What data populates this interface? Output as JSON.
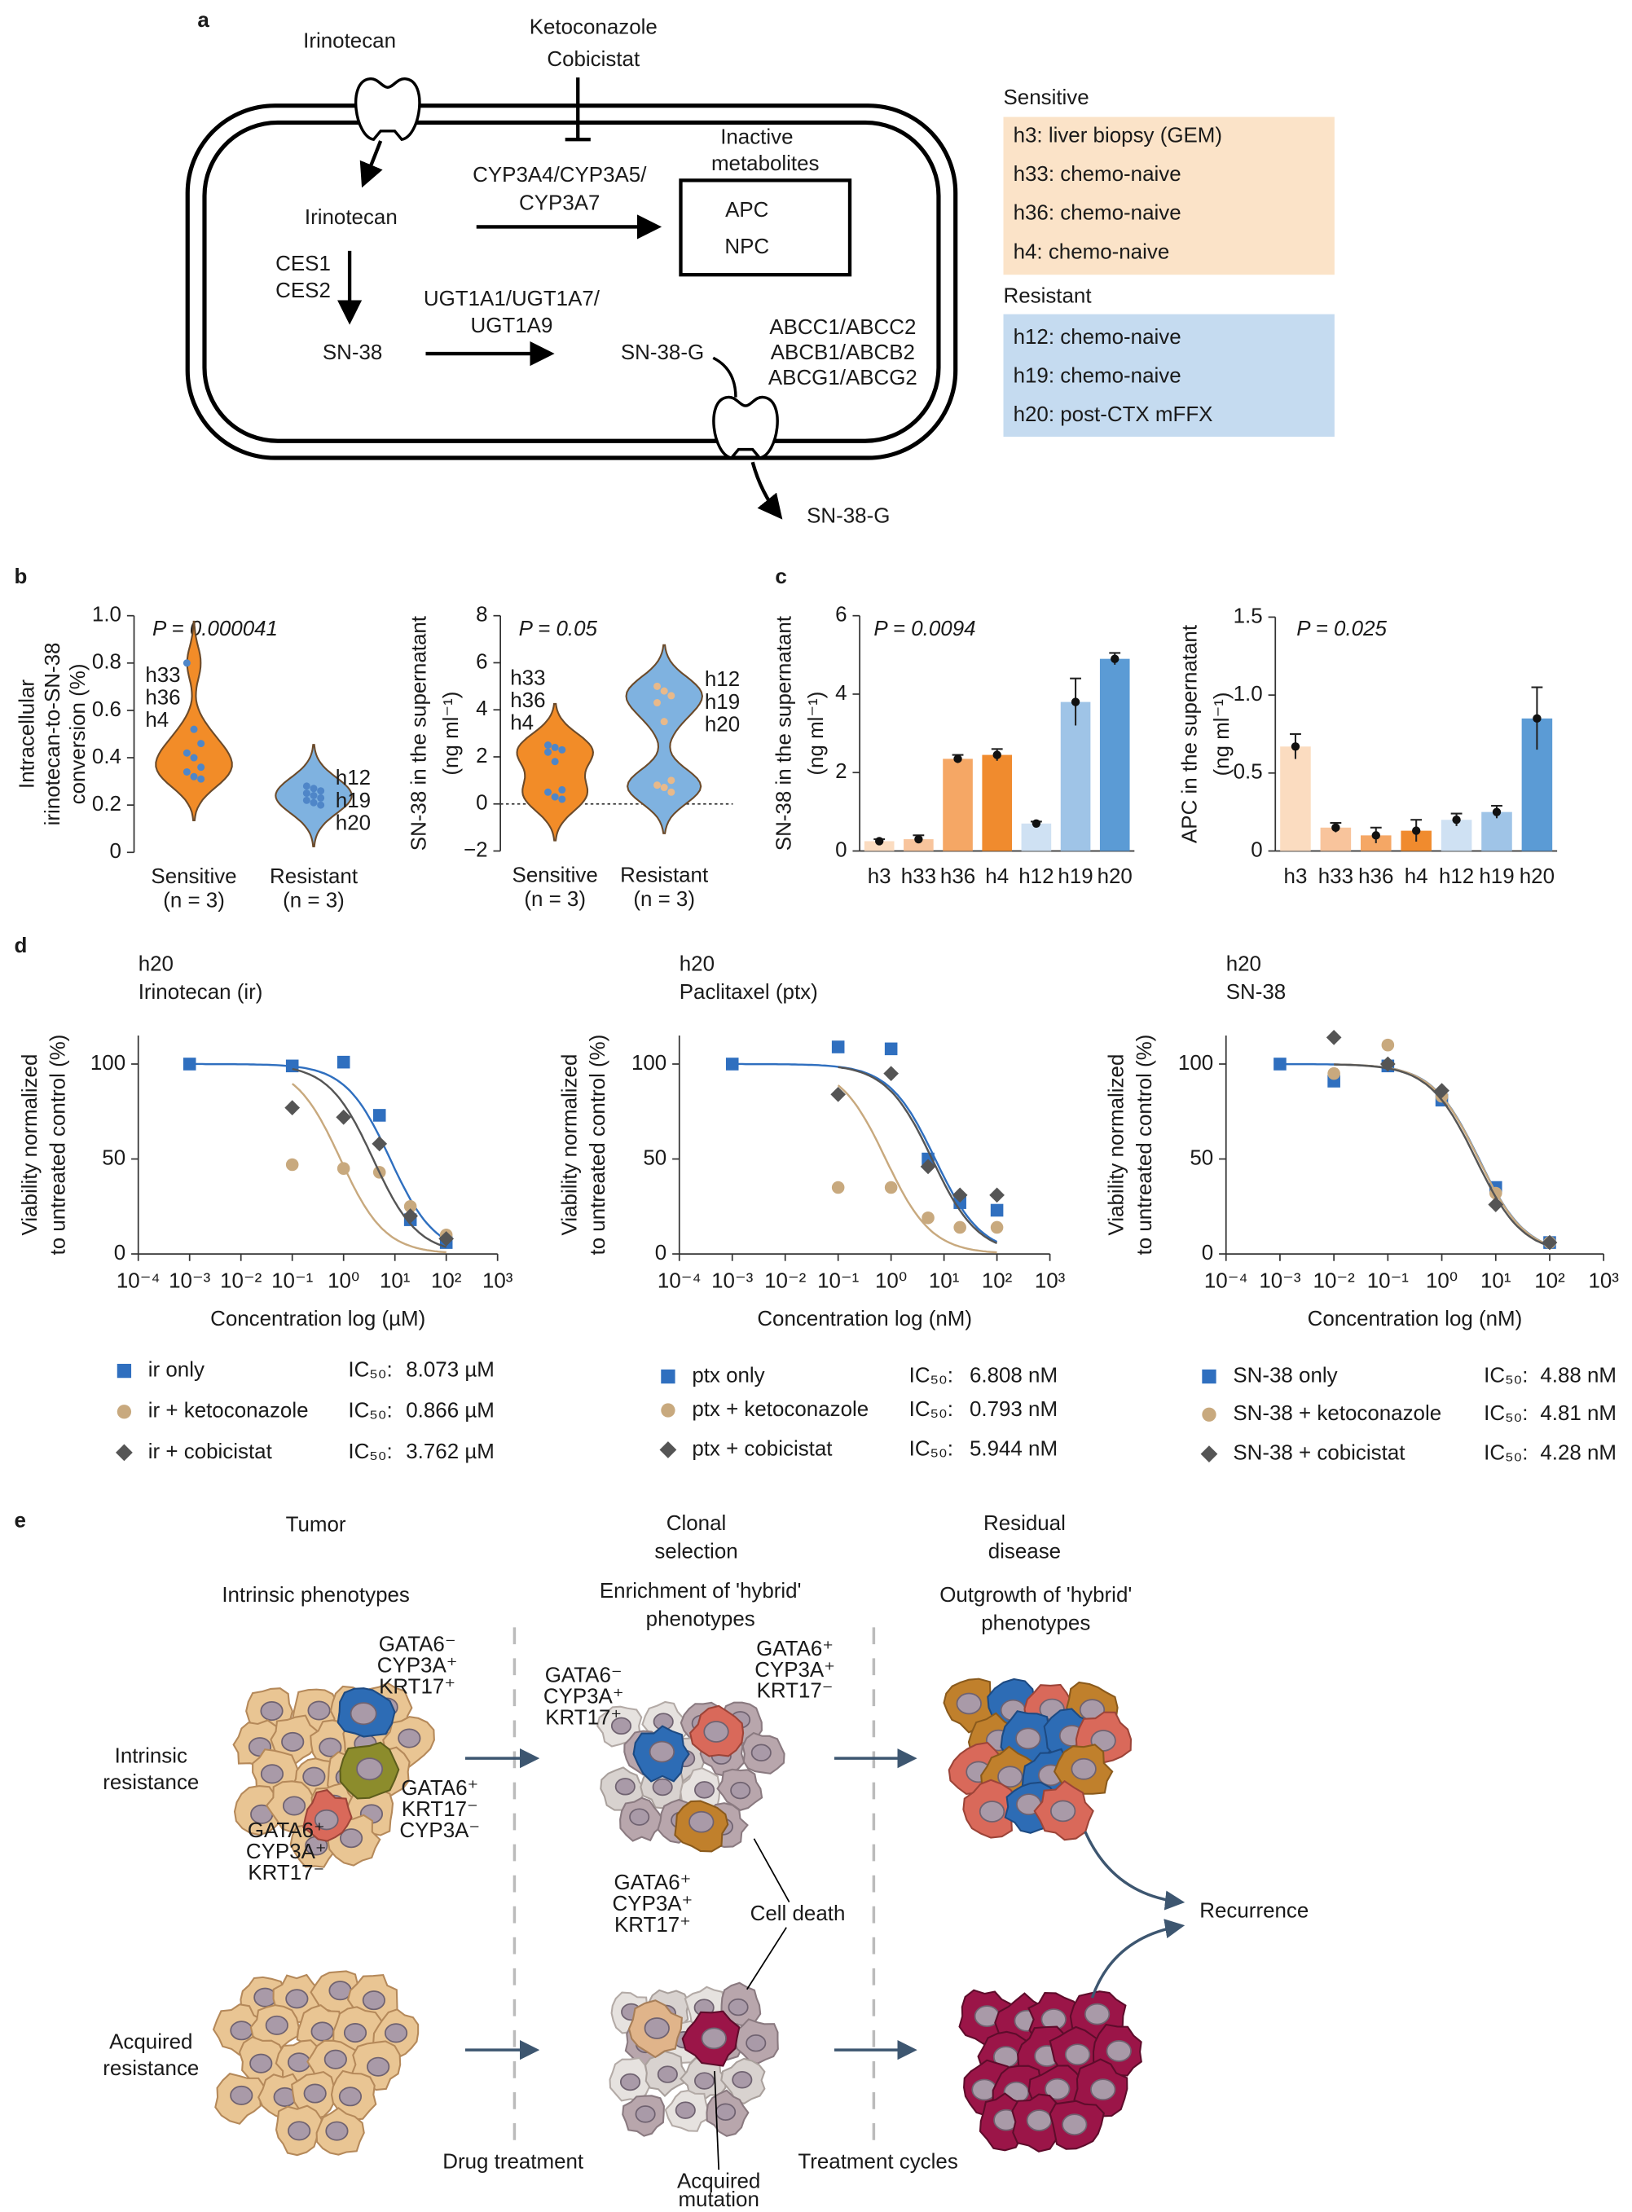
{
  "panel_labels": [
    "a",
    "b",
    "c",
    "d",
    "e"
  ],
  "diagram_a": {
    "drug_in": "Irinotecan",
    "inhibitors": [
      "Ketoconazole",
      "Cobicistat"
    ],
    "irinotecan": "Irinotecan",
    "cyp": [
      "CYP3A4/CYP3A5/",
      "CYP3A7"
    ],
    "inactive": [
      "Inactive",
      "metabolites"
    ],
    "metabolites": [
      "APC",
      "NPC"
    ],
    "ces": [
      "CES1",
      "CES2"
    ],
    "sn38": "SN-38",
    "ugt": [
      "UGT1A1/UGT1A7/",
      "UGT1A9"
    ],
    "sn38g": "SN-38-G",
    "abc": [
      "ABCC1/ABCC2",
      "ABCB1/ABCB2",
      "ABCG1/ABCG2"
    ],
    "efflux": "SN-38-G",
    "legend": [
      {
        "title": "Sensitive",
        "items": [
          "h3: liver biopsy (GEM)",
          "h33: chemo-naive",
          "h36: chemo-naive",
          "h4: chemo-naive"
        ]
      },
      {
        "title": "Resistant",
        "items": [
          "h12: chemo-naive",
          "h19: chemo-naive",
          "h20: post-CTX mFFX"
        ]
      }
    ]
  },
  "chart_data": [
    {
      "type": "violin",
      "p_label": "P = 0.000041",
      "ylabel": [
        "Intracellular",
        "irinotecan-to-SN-38",
        "conversion (%)"
      ],
      "categories": [
        "Sensitive",
        "Resistant"
      ],
      "category_sublabels": [
        "(n = 3)",
        "(n = 3)"
      ],
      "values": [
        [
          0.8,
          0.52,
          0.46,
          0.42,
          0.4,
          0.36,
          0.34,
          0.32,
          0.31
        ],
        [
          0.28,
          0.27,
          0.26,
          0.25,
          0.24,
          0.23,
          0.22,
          0.21,
          0.2
        ]
      ],
      "annotations": [
        [
          "h33",
          "h36",
          "h4"
        ],
        [
          "h12",
          "h19",
          "h20"
        ]
      ],
      "colors": [
        "#f28c28",
        "#7fb2e0"
      ],
      "point_colors": [
        "#4f86c8",
        "#4f86c8"
      ],
      "ylim": [
        0,
        1
      ],
      "yticks": [
        0,
        0.2,
        0.4,
        0.6,
        0.8,
        {
          "value": 1,
          "label": "1.0"
        }
      ]
    },
    {
      "type": "violin",
      "p_label": "P = 0.05",
      "zero_line": true,
      "ylabel": [
        "SN-38 in the supernatant",
        "(ng ml⁻¹)"
      ],
      "categories": [
        "Sensitive",
        "Resistant"
      ],
      "category_sublabels": [
        "(n = 3)",
        "(n = 3)"
      ],
      "values": [
        [
          2.5,
          2.4,
          2.3,
          2.2,
          1.8,
          0.6,
          0.5,
          0.3,
          0.2
        ],
        [
          5.0,
          4.8,
          4.6,
          4.3,
          3.5,
          1.0,
          0.8,
          0.7,
          0.5
        ]
      ],
      "annotations": [
        [
          "h33",
          "h36",
          "h4"
        ],
        [
          "h12",
          "h19",
          "h20"
        ]
      ],
      "colors": [
        "#f28c28",
        "#7fb2e0"
      ],
      "point_colors": [
        "#4f86c8",
        "#e8b98a"
      ],
      "ylim": [
        -2,
        8
      ],
      "yticks": [
        {
          "value": -2,
          "label": "−2"
        },
        0,
        2,
        4,
        6,
        8
      ]
    },
    {
      "type": "bar",
      "p_label": "P = 0.0094",
      "ylabel": [
        "SN-38 in the supernatant",
        "(ng ml⁻¹)"
      ],
      "categories": [
        "h3",
        "h33",
        "h36",
        "h4",
        "h12",
        "h19",
        "h20"
      ],
      "values": [
        0.25,
        0.3,
        2.35,
        2.45,
        0.7,
        3.8,
        4.9
      ],
      "errors": [
        0.05,
        0.1,
        0.1,
        0.15,
        0.05,
        0.6,
        0.15
      ],
      "colors": [
        "#fbdcc0",
        "#f8c49c",
        "#f5a765",
        "#f08b2e",
        "#cfe1f3",
        "#9fc4e7",
        "#5b9bd5"
      ],
      "ylim": [
        0,
        6
      ],
      "yticks": [
        0,
        2,
        4,
        6
      ]
    },
    {
      "type": "bar",
      "p_label": "P = 0.025",
      "ylabel": [
        "APC in the supernatant",
        "(ng ml⁻¹)"
      ],
      "categories": [
        "h3",
        "h33",
        "h36",
        "h4",
        "h12",
        "h19",
        "h20"
      ],
      "values": [
        0.67,
        0.15,
        0.1,
        0.13,
        0.2,
        0.25,
        0.85
      ],
      "errors": [
        0.08,
        0.03,
        0.05,
        0.07,
        0.04,
        0.04,
        0.2
      ],
      "colors": [
        "#fbdcc0",
        "#f8c49c",
        "#f5a765",
        "#f08b2e",
        "#cfe1f3",
        "#9fc4e7",
        "#5b9bd5"
      ],
      "ylim": [
        0,
        1.5
      ],
      "yticks": [
        0,
        0.5,
        {
          "value": 1,
          "label": "1.0"
        },
        1.5
      ]
    },
    {
      "type": "dose_response",
      "title": [
        "h20",
        "Irinotecan (ir)"
      ],
      "xlabel": "Concentration log (µM)",
      "ylabel": [
        "Viability normalized",
        "to untreated control (%)"
      ],
      "xscale": "log",
      "xlim": [
        0.0001,
        1000
      ],
      "xticks": [
        {
          "value": 0.0001,
          "label": "10⁻⁴"
        },
        {
          "value": 0.001,
          "label": "10⁻³"
        },
        {
          "value": 0.01,
          "label": "10⁻²"
        },
        {
          "value": 0.1,
          "label": "10⁻¹"
        },
        {
          "value": 1,
          "label": "10⁰"
        },
        {
          "value": 10,
          "label": "10¹"
        },
        {
          "value": 100,
          "label": "10²"
        },
        {
          "value": 1000,
          "label": "10³"
        }
      ],
      "ylim": [
        0,
        115
      ],
      "yticks": [
        0,
        50,
        100
      ],
      "ic50_prefix": "IC₅₀:",
      "series": [
        {
          "name": "ir only",
          "color": "#2f6fbf",
          "marker": "square",
          "x": [
            0.001,
            0.1,
            1,
            5,
            20,
            100
          ],
          "values": [
            100,
            99,
            101,
            73,
            18,
            6
          ],
          "ic50": 8.073,
          "ic50_label": "8.073 µM"
        },
        {
          "name": "ir + ketoconazole",
          "color": "#c8a97e",
          "marker": "circle",
          "x": [
            0.1,
            1,
            5,
            20,
            100
          ],
          "values": [
            47,
            45,
            43,
            25,
            10
          ],
          "ic50": 0.866,
          "ic50_label": "0.866 µM"
        },
        {
          "name": "ir + cobicistat",
          "color": "#555555",
          "marker": "diamond",
          "x": [
            0.1,
            1,
            5,
            20,
            100
          ],
          "values": [
            77,
            72,
            58,
            20,
            8
          ],
          "ic50": 3.762,
          "ic50_label": "3.762 µM"
        }
      ]
    },
    {
      "type": "dose_response",
      "title": [
        "h20",
        "Paclitaxel (ptx)"
      ],
      "xlabel": "Concentration log (nM)",
      "ylabel": [
        "Viability normalized",
        "to untreated control (%)"
      ],
      "xscale": "log",
      "xlim": [
        0.0001,
        1000
      ],
      "xticks": [
        {
          "value": 0.0001,
          "label": "10⁻⁴"
        },
        {
          "value": 0.001,
          "label": "10⁻³"
        },
        {
          "value": 0.01,
          "label": "10⁻²"
        },
        {
          "value": 0.1,
          "label": "10⁻¹"
        },
        {
          "value": 1,
          "label": "10⁰"
        },
        {
          "value": 10,
          "label": "10¹"
        },
        {
          "value": 100,
          "label": "10²"
        },
        {
          "value": 1000,
          "label": "10³"
        }
      ],
      "ylim": [
        0,
        115
      ],
      "yticks": [
        0,
        50,
        100
      ],
      "ic50_prefix": "IC₅₀:",
      "series": [
        {
          "name": "ptx only",
          "color": "#2f6fbf",
          "marker": "square",
          "x": [
            0.001,
            0.1,
            1,
            5,
            20,
            100
          ],
          "values": [
            100,
            109,
            108,
            50,
            27,
            23
          ],
          "ic50": 6.808,
          "ic50_label": "6.808 nM"
        },
        {
          "name": "ptx + ketoconazole",
          "color": "#c8a97e",
          "marker": "circle",
          "x": [
            0.1,
            1,
            5,
            20,
            100
          ],
          "values": [
            35,
            35,
            19,
            14,
            14
          ],
          "ic50": 0.793,
          "ic50_label": "0.793 nM"
        },
        {
          "name": "ptx + cobicistat",
          "color": "#555555",
          "marker": "diamond",
          "x": [
            0.1,
            1,
            5,
            20,
            100
          ],
          "values": [
            84,
            95,
            46,
            31,
            31
          ],
          "ic50": 5.944,
          "ic50_label": "5.944 nM"
        }
      ]
    },
    {
      "type": "dose_response",
      "title": [
        "h20",
        "SN-38"
      ],
      "xlabel": "Concentration log (nM)",
      "ylabel": [
        "Viability normalized",
        "to untreated control (%)"
      ],
      "xscale": "log",
      "xlim": [
        0.0001,
        1000
      ],
      "xticks": [
        {
          "value": 0.0001,
          "label": "10⁻⁴"
        },
        {
          "value": 0.001,
          "label": "10⁻³"
        },
        {
          "value": 0.01,
          "label": "10⁻²"
        },
        {
          "value": 0.1,
          "label": "10⁻¹"
        },
        {
          "value": 1,
          "label": "10⁰"
        },
        {
          "value": 10,
          "label": "10¹"
        },
        {
          "value": 100,
          "label": "10²"
        },
        {
          "value": 1000,
          "label": "10³"
        }
      ],
      "ylim": [
        0,
        115
      ],
      "yticks": [
        0,
        50,
        100
      ],
      "ic50_prefix": "IC₅₀:",
      "series": [
        {
          "name": "SN-38 only",
          "color": "#2f6fbf",
          "marker": "square",
          "x": [
            0.001,
            0.01,
            0.1,
            1,
            10,
            100
          ],
          "values": [
            100,
            91,
            99,
            81,
            35,
            6
          ],
          "ic50": 4.88,
          "ic50_label": "4.88 nM"
        },
        {
          "name": "SN-38 + ketoconazole",
          "color": "#c8a97e",
          "marker": "circle",
          "x": [
            0.01,
            0.1,
            1,
            10,
            100
          ],
          "values": [
            95,
            110,
            83,
            32,
            6
          ],
          "ic50": 4.81,
          "ic50_label": "4.81 nM"
        },
        {
          "name": "SN-38 + cobicistat",
          "color": "#555555",
          "marker": "diamond",
          "x": [
            0.01,
            0.1,
            1,
            10,
            100
          ],
          "values": [
            114,
            100,
            86,
            26,
            6
          ],
          "ic50": 4.28,
          "ic50_label": "4.28 nM"
        }
      ]
    }
  ],
  "diagram_e": {
    "columns": [
      [
        "Tumor"
      ],
      [
        "Clonal",
        "selection"
      ],
      [
        "Residual",
        "disease"
      ]
    ],
    "column_subtitles": [
      [
        "Intrinsic phenotypes"
      ],
      [
        "Enrichment of 'hybrid'",
        "phenotypes"
      ],
      [
        "Outgrowth of 'hybrid'",
        "phenotypes"
      ]
    ],
    "rows": [
      [
        "Intrinsic",
        "resistance"
      ],
      [
        "Acquired",
        "resistance"
      ]
    ],
    "markers": [
      [
        "GATA6⁻",
        "CYP3A⁺",
        "KRT17⁺"
      ],
      [
        "GATA6⁺",
        "KRT17⁻",
        "CYP3A⁻"
      ],
      [
        "GATA6⁺",
        "CYP3A⁺",
        "KRT17⁻"
      ],
      [
        "GATA6⁻",
        "CYP3A⁺",
        "KRT17⁺"
      ],
      [
        "GATA6⁺",
        "CYP3A⁺",
        "KRT17⁻"
      ],
      [
        "GATA6⁺",
        "CYP3A⁺",
        "KRT17⁺"
      ]
    ],
    "cell_death": "Cell death",
    "acquired_mutation": [
      "Acquired",
      "mutation"
    ],
    "recurrence": "Recurrence",
    "steps": [
      "Drug treatment",
      "Treatment cycles"
    ]
  }
}
